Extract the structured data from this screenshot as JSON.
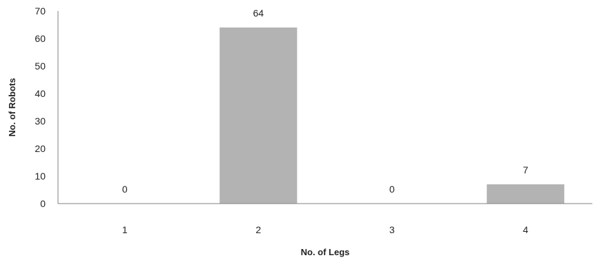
{
  "chart_data": {
    "type": "bar",
    "categories": [
      "1",
      "2",
      "3",
      "4"
    ],
    "values": [
      0,
      64,
      0,
      7
    ],
    "data_labels": [
      "0",
      "64",
      "0",
      "7"
    ],
    "xlabel": "No. of Legs",
    "ylabel": "No. of Robots",
    "ylim": [
      0,
      70
    ],
    "yticks": [
      0,
      10,
      20,
      30,
      40,
      50,
      60,
      70
    ],
    "grid": false,
    "bar_color": "#b3b3b3",
    "axis_color": "#808080"
  }
}
